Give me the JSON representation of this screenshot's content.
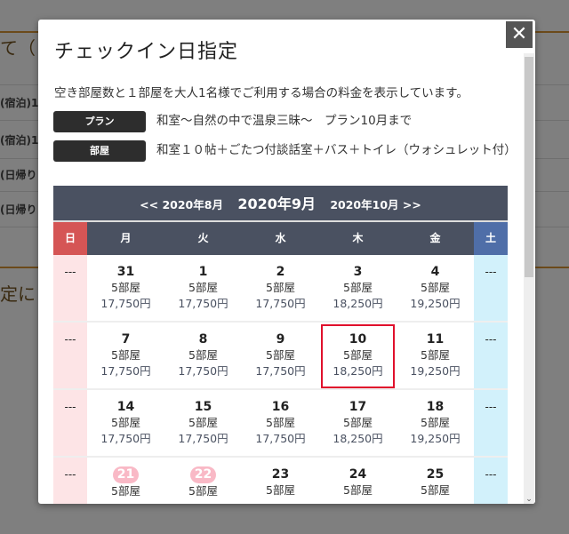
{
  "background": {
    "title": "て（",
    "rows": [
      "(宿泊)1",
      "(宿泊)1",
      "(日帰り",
      "(日帰り"
    ],
    "title2": "定に"
  },
  "modal": {
    "title": "チェックイン日指定",
    "close_label": "✕",
    "description": "空き部屋数と１部屋を大人1名様でご利用する場合の料金を表示しています。",
    "plan_label": "プラン",
    "plan_value": "和室〜自然の中で温泉三昧〜　プラン10月まで",
    "room_label": "部屋",
    "room_value": "和室１０帖＋ごたつ付談話室＋バス＋トイレ（ウォシュレット付）"
  },
  "calendar": {
    "prev": "<<  2020年8月",
    "current": "2020年9月",
    "next": "2020年10月  >>",
    "weekdays": [
      "日",
      "月",
      "火",
      "水",
      "木",
      "金",
      "土"
    ],
    "weeks": [
      [
        {
          "d": "---"
        },
        {
          "d": "31",
          "r": "5部屋",
          "p": "17,750円"
        },
        {
          "d": "1",
          "r": "5部屋",
          "p": "17,750円"
        },
        {
          "d": "2",
          "r": "5部屋",
          "p": "17,750円"
        },
        {
          "d": "3",
          "r": "5部屋",
          "p": "18,250円"
        },
        {
          "d": "4",
          "r": "5部屋",
          "p": "19,250円"
        },
        {
          "d": "---"
        }
      ],
      [
        {
          "d": "---"
        },
        {
          "d": "7",
          "r": "5部屋",
          "p": "17,750円"
        },
        {
          "d": "8",
          "r": "5部屋",
          "p": "17,750円"
        },
        {
          "d": "9",
          "r": "5部屋",
          "p": "17,750円"
        },
        {
          "d": "10",
          "r": "5部屋",
          "p": "18,250円",
          "selected": true
        },
        {
          "d": "11",
          "r": "5部屋",
          "p": "19,250円"
        },
        {
          "d": "---"
        }
      ],
      [
        {
          "d": "---"
        },
        {
          "d": "14",
          "r": "5部屋",
          "p": "17,750円"
        },
        {
          "d": "15",
          "r": "5部屋",
          "p": "17,750円"
        },
        {
          "d": "16",
          "r": "5部屋",
          "p": "17,750円"
        },
        {
          "d": "17",
          "r": "5部屋",
          "p": "18,250円"
        },
        {
          "d": "18",
          "r": "5部屋",
          "p": "19,250円"
        },
        {
          "d": "---"
        }
      ],
      [
        {
          "d": "---"
        },
        {
          "d": "21",
          "r": "5部屋",
          "holiday": true
        },
        {
          "d": "22",
          "r": "5部屋",
          "holiday": true
        },
        {
          "d": "23",
          "r": "5部屋"
        },
        {
          "d": "24",
          "r": "5部屋"
        },
        {
          "d": "25",
          "r": "5部屋"
        },
        {
          "d": "---"
        }
      ]
    ]
  },
  "colors": {
    "header": "#4a5161",
    "sunday": "#d55555",
    "saturday": "#4f6ea8",
    "selected": "#e0102c",
    "holiday": "#f9b9c6"
  }
}
